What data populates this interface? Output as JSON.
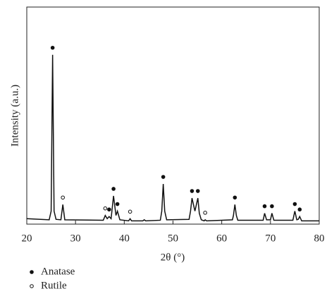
{
  "chart_data": {
    "type": "line",
    "x_label": "2θ (°)",
    "y_label": "Intensity (a.u.)",
    "xlim": [
      20,
      80
    ],
    "xticks": [
      20,
      30,
      40,
      50,
      60,
      70,
      80
    ],
    "ylim": [
      0,
      100
    ],
    "series": [
      {
        "color": "#111111",
        "x": [
          20,
          24.6,
          25.0,
          25.3,
          25.6,
          26.0,
          27.0,
          27.4,
          27.8,
          35.7,
          36.1,
          36.5,
          36.9,
          37.3,
          37.8,
          38.3,
          38.6,
          39.1,
          40.9,
          41.2,
          41.5,
          43.8,
          44.1,
          44.4,
          47.4,
          47.7,
          48.0,
          48.3,
          48.7,
          53.3,
          53.6,
          53.9,
          54.5,
          55.1,
          55.4,
          55.8,
          56.4,
          56.6,
          56.9,
          62.2,
          62.4,
          62.7,
          63.0,
          63.3,
          68.5,
          68.8,
          69.2,
          70.0,
          70.3,
          70.7,
          74.6,
          75.0,
          75.4,
          75.7,
          76.0,
          76.4,
          80
        ],
        "values": [
          2.5,
          2,
          6,
          78,
          6,
          2.2,
          2,
          9,
          2,
          1.8,
          4,
          2.5,
          3.5,
          2.5,
          13,
          4,
          6,
          2,
          1.5,
          2.5,
          1.5,
          1.5,
          2,
          1.5,
          1.8,
          6,
          18.5,
          6,
          2,
          2.2,
          6,
          12,
          6,
          12,
          5,
          2,
          1.5,
          2,
          1.5,
          2,
          4,
          9,
          4,
          1.8,
          1.8,
          5,
          2,
          2,
          5,
          1.8,
          1.8,
          6,
          2,
          2.2,
          3.5,
          1.5,
          1.5
        ]
      }
    ],
    "phases": [
      {
        "name": "Anatase",
        "marker": "filled",
        "x": [
          25.3,
          36.9,
          37.8,
          38.6,
          48.0,
          53.9,
          55.1,
          62.7,
          68.8,
          70.3,
          75.0,
          76.0
        ]
      },
      {
        "name": "Rutile",
        "marker": "open",
        "x": [
          27.4,
          36.1,
          41.2,
          56.6
        ]
      }
    ]
  }
}
